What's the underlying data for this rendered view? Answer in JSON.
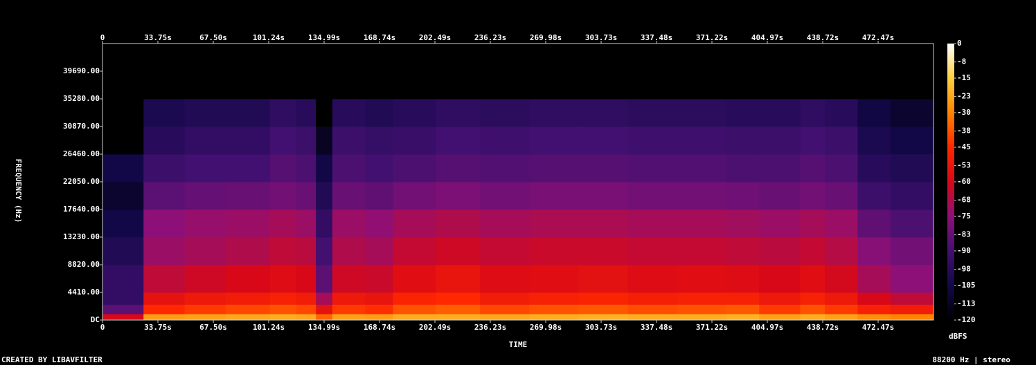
{
  "chart_data": {
    "type": "spectrogram",
    "x_label": "TIME",
    "y_label": "FREQUENCY (Hz)",
    "colorbar_label": "dBFS",
    "footer_left": "CREATED BY LIBAVFILTER",
    "footer_right": "88200 Hz | stereo",
    "xlim": [
      0,
      506.2
    ],
    "xticks": [
      0,
      {
        "value": 33.75,
        "label": "33.75s"
      },
      {
        "value": 67.5,
        "label": "67.50s"
      },
      {
        "value": 101.24,
        "label": "101.24s"
      },
      {
        "value": 134.99,
        "label": "134.99s"
      },
      {
        "value": 168.74,
        "label": "168.74s"
      },
      {
        "value": 202.49,
        "label": "202.49s"
      },
      {
        "value": 236.23,
        "label": "236.23s"
      },
      {
        "value": 269.98,
        "label": "269.98s"
      },
      {
        "value": 303.73,
        "label": "303.73s"
      },
      {
        "value": 337.48,
        "label": "337.48s"
      },
      {
        "value": 371.22,
        "label": "371.22s"
      },
      {
        "value": 404.97,
        "label": "404.97s"
      },
      {
        "value": 438.72,
        "label": "438.72s"
      },
      {
        "value": 472.47,
        "label": "472.47s"
      }
    ],
    "ylim": [
      0,
      44100
    ],
    "yticks": [
      {
        "value": 0,
        "label": "DC"
      },
      {
        "value": 4410,
        "label": "4410.00"
      },
      {
        "value": 8820,
        "label": "8820.00"
      },
      {
        "value": 13230,
        "label": "13230.00"
      },
      {
        "value": 17640,
        "label": "17640.00"
      },
      {
        "value": 22050,
        "label": "22050.00"
      },
      {
        "value": 26460,
        "label": "26460.00"
      },
      {
        "value": 30870,
        "label": "30870.00"
      },
      {
        "value": 35280,
        "label": "35280.00"
      },
      {
        "value": 39690,
        "label": "39690.00"
      }
    ],
    "clim": [
      -120,
      0
    ],
    "cticks": [
      0,
      -8,
      -15,
      -23,
      -30,
      -38,
      -45,
      -53,
      -60,
      -68,
      -75,
      -83,
      -90,
      -98,
      -105,
      -113,
      -120
    ],
    "colorscale": [
      [
        -120,
        "#000000"
      ],
      [
        -105,
        "#120848"
      ],
      [
        -90,
        "#421070"
      ],
      [
        -75,
        "#8c1078"
      ],
      [
        -60,
        "#d80818"
      ],
      [
        -45,
        "#ff2800"
      ],
      [
        -30,
        "#ff8400"
      ],
      [
        -15,
        "#ffd040"
      ],
      [
        0,
        "#ffffff"
      ]
    ],
    "xbins": [
      0,
      25,
      50,
      75,
      102,
      118,
      130,
      140,
      160,
      177,
      203,
      230,
      260,
      290,
      320,
      350,
      380,
      400,
      425,
      440,
      460,
      480,
      506.2
    ],
    "ybins": [
      0,
      1000,
      2500,
      4410,
      8820,
      13230,
      17640,
      22050,
      26460,
      30870,
      35280,
      44100
    ],
    "z": [
      [
        -60,
        -85,
        -95,
        -95,
        -100,
        -105,
        -110,
        -105,
        -120,
        -120,
        -120
      ],
      [
        -25,
        -45,
        -55,
        -65,
        -72,
        -75,
        -85,
        -92,
        -98,
        -102,
        -120
      ],
      [
        -24,
        -42,
        -52,
        -62,
        -70,
        -73,
        -83,
        -90,
        -95,
        -100,
        -120
      ],
      [
        -23,
        -40,
        -50,
        -60,
        -68,
        -72,
        -82,
        -90,
        -95,
        -100,
        -120
      ],
      [
        -22,
        -38,
        -48,
        -58,
        -65,
        -70,
        -80,
        -86,
        -90,
        -96,
        -120
      ],
      [
        -23,
        -40,
        -50,
        -60,
        -66,
        -72,
        -82,
        -88,
        -92,
        -98,
        -120
      ],
      [
        -35,
        -55,
        -70,
        -85,
        -90,
        -95,
        -100,
        -105,
        -113,
        -120,
        -120
      ],
      [
        -24,
        -42,
        -52,
        -62,
        -68,
        -72,
        -82,
        -88,
        -92,
        -98,
        -120
      ],
      [
        -25,
        -44,
        -54,
        -63,
        -70,
        -74,
        -84,
        -90,
        -94,
        -100,
        -120
      ],
      [
        -22,
        -38,
        -47,
        -57,
        -64,
        -70,
        -80,
        -88,
        -93,
        -98,
        -120
      ],
      [
        -22,
        -36,
        -45,
        -54,
        -62,
        -68,
        -78,
        -86,
        -90,
        -96,
        -120
      ],
      [
        -23,
        -40,
        -50,
        -58,
        -64,
        -70,
        -80,
        -87,
        -91,
        -97,
        -120
      ],
      [
        -22,
        -38,
        -48,
        -57,
        -63,
        -69,
        -79,
        -86,
        -90,
        -96,
        -120
      ],
      [
        -21,
        -37,
        -47,
        -56,
        -63,
        -69,
        -79,
        -86,
        -90,
        -96,
        -120
      ],
      [
        -22,
        -39,
        -49,
        -58,
        -64,
        -70,
        -80,
        -87,
        -91,
        -97,
        -120
      ],
      [
        -22,
        -38,
        -48,
        -57,
        -64,
        -70,
        -80,
        -87,
        -91,
        -97,
        -120
      ],
      [
        -21,
        -37,
        -48,
        -58,
        -65,
        -71,
        -81,
        -88,
        -92,
        -98,
        -120
      ],
      [
        -24,
        -42,
        -52,
        -60,
        -66,
        -72,
        -82,
        -88,
        -92,
        -98,
        -120
      ],
      [
        -22,
        -38,
        -48,
        -57,
        -64,
        -70,
        -80,
        -86,
        -90,
        -96,
        -120
      ],
      [
        -24,
        -42,
        -52,
        -61,
        -67,
        -72,
        -82,
        -88,
        -92,
        -98,
        -120
      ],
      [
        -28,
        -48,
        -60,
        -70,
        -76,
        -84,
        -92,
        -98,
        -102,
        -106,
        -120
      ],
      [
        -30,
        -50,
        -65,
        -75,
        -80,
        -88,
        -95,
        -100,
        -105,
        -110,
        -120
      ]
    ]
  }
}
